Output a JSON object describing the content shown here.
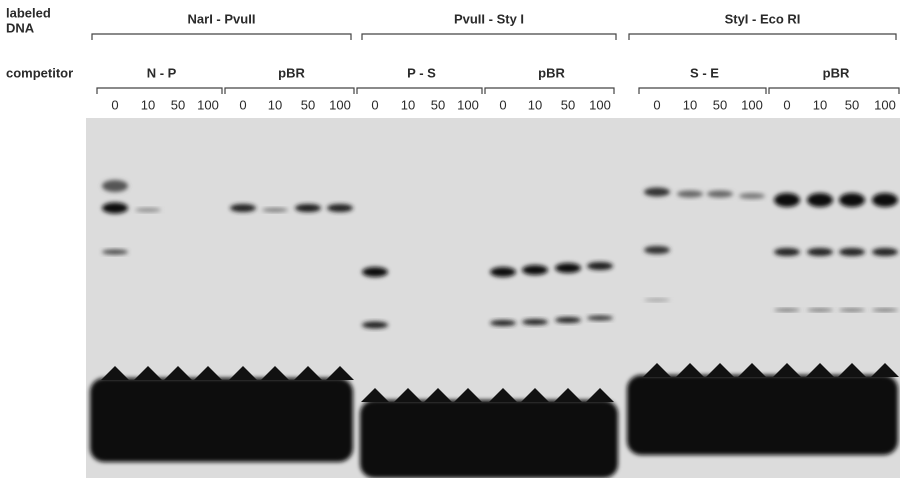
{
  "row_labels": {
    "labeled_dna": [
      "labeled",
      "DNA"
    ],
    "competitor": "competitor"
  },
  "panels": [
    {
      "title": "NarI - PvuII",
      "groups": [
        {
          "name": "N - P",
          "lanes": [
            "0",
            "10",
            "50",
            "100"
          ]
        },
        {
          "name": "pBR",
          "lanes": [
            "0",
            "10",
            "50",
            "100"
          ]
        }
      ]
    },
    {
      "title": "PvuII - Sty I",
      "groups": [
        {
          "name": "P - S",
          "lanes": [
            "0",
            "10",
            "50",
            "100"
          ]
        },
        {
          "name": "pBR",
          "lanes": [
            "0",
            "10",
            "50",
            "100"
          ]
        }
      ]
    },
    {
      "title": "StyI - Eco RI",
      "groups": [
        {
          "name": "S - E",
          "lanes": [
            "0",
            "10",
            "50",
            "100"
          ]
        },
        {
          "name": "pBR",
          "lanes": [
            "0",
            "10",
            "50",
            "100"
          ]
        }
      ]
    }
  ]
}
